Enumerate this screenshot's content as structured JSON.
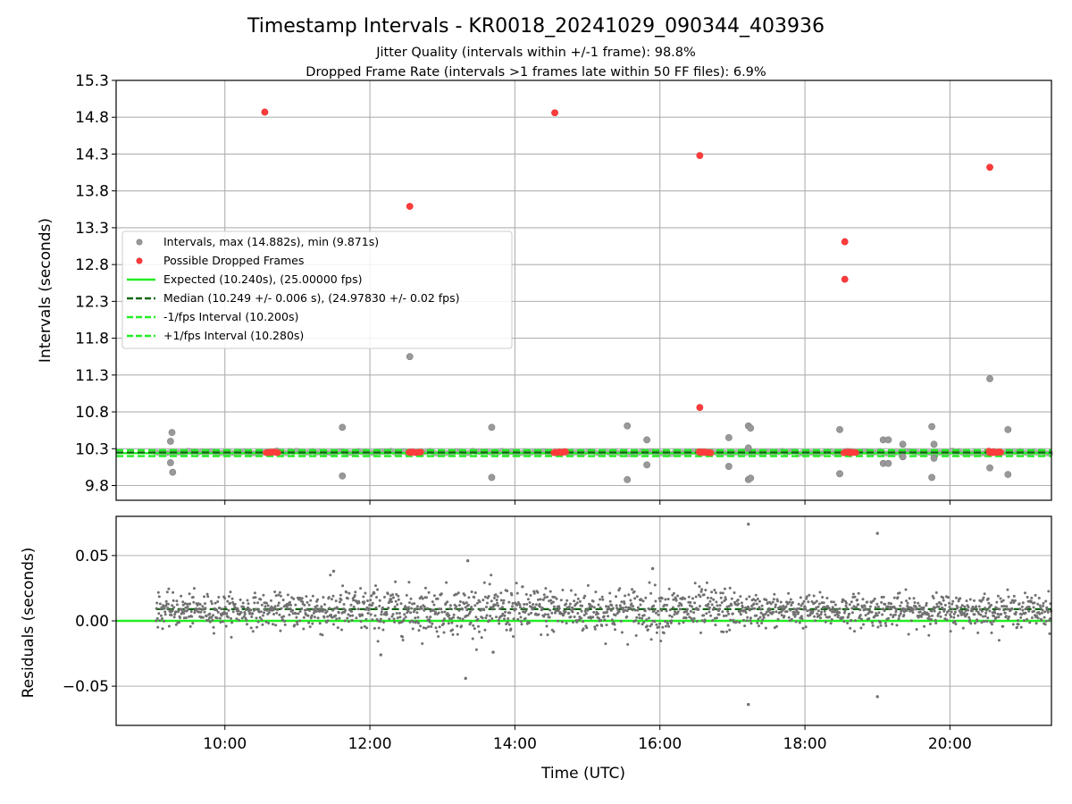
{
  "figure": {
    "title": "Timestamp Intervals - KR0018_20241029_090344_403936",
    "subtitle_line1": "Jitter Quality (intervals within +/-1 frame): 98.8%",
    "subtitle_line2": "Dropped Frame Rate (intervals >1 frames late within 50 FF files): 6.9%",
    "xlabel": "Time (UTC)"
  },
  "colors": {
    "interval_points": "#999999",
    "dropped_points": "#ff3b3b",
    "expected_line": "#22ee22",
    "median_line": "#116611",
    "fps_bound_lines": "#22ee22",
    "residual_points": "#707070",
    "grid": "#b0b0b0"
  },
  "chart_data": [
    {
      "type": "scatter",
      "name": "intervals",
      "ylabel": "Intervals (seconds)",
      "x_unit": "hours UTC",
      "xlim": [
        8.5,
        21.4
      ],
      "ylim": [
        9.6,
        15.3
      ],
      "yticks": [
        "15.3",
        "14.8",
        "14.3",
        "13.8",
        "13.3",
        "12.8",
        "12.3",
        "11.8",
        "11.3",
        "10.8",
        "10.3",
        "9.8"
      ],
      "xticks": [
        "10:00",
        "12:00",
        "14:00",
        "16:00",
        "18:00",
        "20:00"
      ],
      "grid": true,
      "legend_position": "left",
      "legend": [
        {
          "label": "Intervals, max (14.882s), min (9.871s)",
          "kind": "marker"
        },
        {
          "label": "Possible Dropped Frames",
          "kind": "marker"
        },
        {
          "label": "Expected (10.240s), (25.00000 fps)",
          "kind": "solid"
        },
        {
          "label": "Median (10.249 +/- 0.006 s), (24.97830 +/- 0.02 fps)",
          "kind": "dashed-dark"
        },
        {
          "label": "-1/fps Interval (10.200s)",
          "kind": "dashed"
        },
        {
          "label": "+1/fps Interval (10.280s)",
          "kind": "dashed"
        }
      ],
      "hlines": {
        "expected": 10.24,
        "median": 10.249,
        "minus_1fps": 10.2,
        "plus_1fps": 10.28
      },
      "baseline_range": [
        9.05,
        21.4
      ],
      "baseline_value": 10.25,
      "dense_clusters_x": [
        10.65,
        12.62,
        14.62,
        16.62,
        18.62,
        20.62
      ],
      "dropped_frames": [
        {
          "x": 10.55,
          "y": 14.87
        },
        {
          "x": 12.55,
          "y": 13.59
        },
        {
          "x": 14.55,
          "y": 14.86
        },
        {
          "x": 16.55,
          "y": 14.28
        },
        {
          "x": 16.55,
          "y": 10.86
        },
        {
          "x": 18.55,
          "y": 13.11
        },
        {
          "x": 18.55,
          "y": 12.6
        },
        {
          "x": 20.55,
          "y": 14.12
        }
      ],
      "outliers": [
        {
          "x": 9.25,
          "y": 10.4
        },
        {
          "x": 9.27,
          "y": 10.52
        },
        {
          "x": 9.25,
          "y": 10.11
        },
        {
          "x": 9.28,
          "y": 9.98
        },
        {
          "x": 11.62,
          "y": 10.59
        },
        {
          "x": 11.62,
          "y": 9.93
        },
        {
          "x": 12.55,
          "y": 11.55
        },
        {
          "x": 13.68,
          "y": 10.59
        },
        {
          "x": 13.68,
          "y": 9.91
        },
        {
          "x": 15.55,
          "y": 10.61
        },
        {
          "x": 15.55,
          "y": 9.88
        },
        {
          "x": 15.82,
          "y": 10.42
        },
        {
          "x": 15.82,
          "y": 10.08
        },
        {
          "x": 16.95,
          "y": 10.45
        },
        {
          "x": 16.95,
          "y": 10.06
        },
        {
          "x": 17.22,
          "y": 10.61
        },
        {
          "x": 17.25,
          "y": 10.58
        },
        {
          "x": 17.22,
          "y": 10.31
        },
        {
          "x": 17.22,
          "y": 9.88
        },
        {
          "x": 17.25,
          "y": 9.9
        },
        {
          "x": 18.48,
          "y": 10.56
        },
        {
          "x": 18.48,
          "y": 9.96
        },
        {
          "x": 19.08,
          "y": 10.42
        },
        {
          "x": 19.15,
          "y": 10.42
        },
        {
          "x": 19.08,
          "y": 10.1
        },
        {
          "x": 19.15,
          "y": 10.1
        },
        {
          "x": 19.35,
          "y": 10.36
        },
        {
          "x": 19.35,
          "y": 10.19
        },
        {
          "x": 19.75,
          "y": 10.6
        },
        {
          "x": 19.78,
          "y": 10.36
        },
        {
          "x": 19.75,
          "y": 9.91
        },
        {
          "x": 19.78,
          "y": 10.17
        },
        {
          "x": 20.55,
          "y": 11.25
        },
        {
          "x": 20.55,
          "y": 10.04
        },
        {
          "x": 20.8,
          "y": 10.56
        },
        {
          "x": 20.8,
          "y": 9.95
        }
      ]
    },
    {
      "type": "scatter",
      "name": "residuals",
      "ylabel": "Residuals (seconds)",
      "xlabel": "Time (UTC)",
      "xlim": [
        8.5,
        21.4
      ],
      "ylim": [
        -0.08,
        0.08
      ],
      "yticks": [
        "0.05",
        "0.00",
        "−0.05"
      ],
      "xticks": [
        "10:00",
        "12:00",
        "14:00",
        "16:00",
        "18:00",
        "20:00"
      ],
      "grid": true,
      "expected": 0.0,
      "median": 0.009,
      "cloud_range": [
        9.05,
        21.4
      ],
      "cloud_center": 0.008,
      "cloud_spread": 0.013,
      "outliers": [
        {
          "x": 17.22,
          "y": 0.074
        },
        {
          "x": 17.22,
          "y": -0.064
        },
        {
          "x": 19.0,
          "y": 0.067
        },
        {
          "x": 19.0,
          "y": -0.058
        },
        {
          "x": 13.35,
          "y": 0.046
        },
        {
          "x": 13.32,
          "y": -0.044
        },
        {
          "x": 15.9,
          "y": 0.04
        },
        {
          "x": 11.5,
          "y": 0.038
        },
        {
          "x": 12.15,
          "y": -0.026
        },
        {
          "x": 13.7,
          "y": -0.024
        }
      ]
    }
  ]
}
